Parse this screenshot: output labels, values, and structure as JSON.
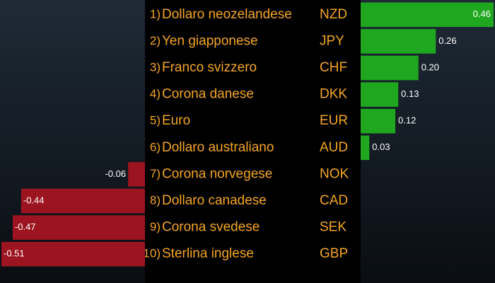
{
  "chart_data": {
    "type": "diverging-bar",
    "ranks": [
      "1)",
      "2)",
      "3)",
      "4)",
      "5)",
      "6)",
      "7)",
      "8)",
      "9)",
      "10)"
    ],
    "categories": [
      "Dollaro neozelandese",
      "Yen giapponese",
      "Franco svizzero",
      "Corona danese",
      "Euro",
      "Dollaro australiano",
      "Corona norvegese",
      "Dollaro canadese",
      "Corona svedese",
      "Sterlina inglese"
    ],
    "codes": [
      "NZD",
      "JPY",
      "CHF",
      "DKK",
      "EUR",
      "AUD",
      "NOK",
      "CAD",
      "SEK",
      "GBP"
    ],
    "values": [
      0.46,
      0.26,
      0.2,
      0.13,
      0.12,
      0.03,
      -0.06,
      -0.44,
      -0.47,
      -0.51
    ],
    "value_labels": [
      "0.46",
      "0.26",
      "0.20",
      "0.13",
      "0.12",
      "0.03",
      "-0.06",
      "-0.44",
      "-0.47",
      "-0.51"
    ],
    "positive_color": "#1fa81f",
    "negative_color": "#9c1420"
  }
}
